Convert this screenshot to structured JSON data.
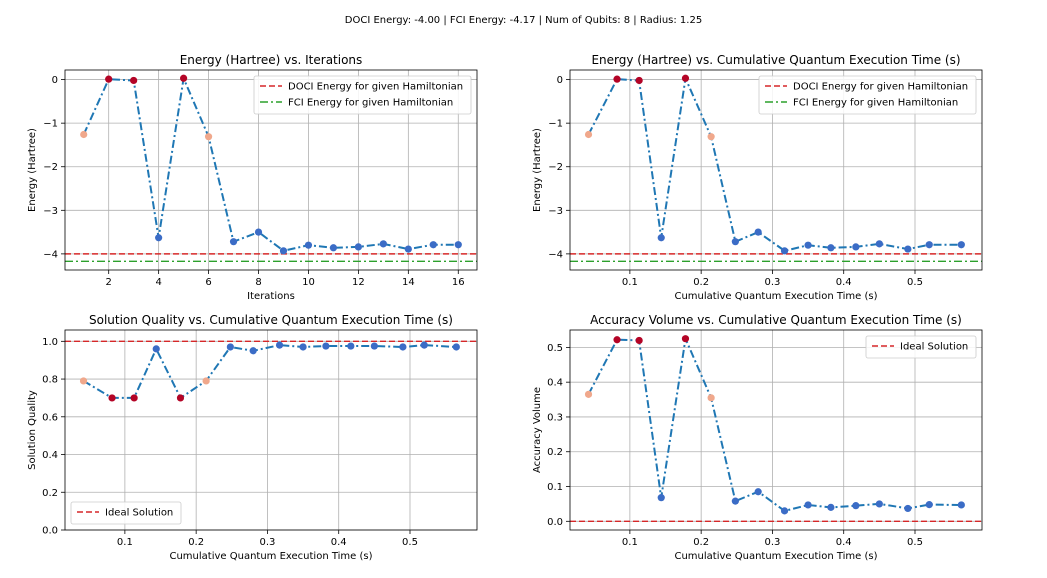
{
  "figure": {
    "suptitle": "DOCI Energy: -4.00 | FCI Energy: -4.17 | Num of Qubits: 8 | Radius: 1.25"
  },
  "chart_data": [
    {
      "type": "line",
      "title": "Energy (Hartree) vs. Iterations",
      "xlabel": "Iterations",
      "ylabel": "Energy (Hartree)",
      "xlim": [
        0.25,
        16.75
      ],
      "ylim": [
        -4.37,
        0.22
      ],
      "xticks": [
        2,
        4,
        6,
        8,
        10,
        12,
        14,
        16
      ],
      "xtick_labels": [
        "2",
        "4",
        "6",
        "8",
        "10",
        "12",
        "14",
        "16"
      ],
      "yticks": [
        -4,
        -3,
        -2,
        -1,
        0
      ],
      "ytick_labels": [
        "−4",
        "−3",
        "−2",
        "−1",
        "0"
      ],
      "grid": true,
      "legend_position": "top-right",
      "x": [
        1,
        2,
        3,
        4,
        5,
        6,
        7,
        8,
        9,
        10,
        11,
        12,
        13,
        14,
        15,
        16
      ],
      "y": [
        -1.26,
        0.01,
        -0.02,
        -3.63,
        0.03,
        -1.31,
        -3.72,
        -3.5,
        -3.93,
        -3.8,
        -3.86,
        -3.84,
        -3.77,
        -3.89,
        -3.79,
        -3.79
      ],
      "point_colors": [
        "#f0a88c",
        "#b40426",
        "#b40426",
        "#3b6cc6",
        "#b40426",
        "#f0a88c",
        "#3b6cc6",
        "#3b6cc6",
        "#3b6cc6",
        "#3b6cc6",
        "#3b6cc6",
        "#3b6cc6",
        "#3b6cc6",
        "#3b6cc6",
        "#3b6cc6",
        "#3b6cc6"
      ],
      "line_color": "#1f77b4",
      "hlines": [
        {
          "y": -4.0,
          "color": "#d62728",
          "style": "dashed",
          "label": "DOCI Energy for given Hamiltonian"
        },
        {
          "y": -4.17,
          "color": "#2ca02c",
          "style": "dashdot",
          "label": "FCI Energy for given Hamiltonian"
        }
      ]
    },
    {
      "type": "line",
      "title": "Energy (Hartree) vs. Cumulative Quantum Execution Time (s)",
      "xlabel": "Cumulative Quantum Execution Time (s)",
      "ylabel": "Energy (Hartree)",
      "xlim": [
        0.016,
        0.594
      ],
      "ylim": [
        -4.37,
        0.22
      ],
      "xticks": [
        0.1,
        0.2,
        0.3,
        0.4,
        0.5
      ],
      "xtick_labels": [
        "0.1",
        "0.2",
        "0.3",
        "0.4",
        "0.5"
      ],
      "yticks": [
        -4,
        -3,
        -2,
        -1,
        0
      ],
      "ytick_labels": [
        "−4",
        "−3",
        "−2",
        "−1",
        "0"
      ],
      "grid": true,
      "legend_position": "top-right",
      "x": [
        0.042,
        0.082,
        0.113,
        0.144,
        0.178,
        0.214,
        0.248,
        0.28,
        0.317,
        0.35,
        0.382,
        0.417,
        0.45,
        0.49,
        0.52,
        0.565
      ],
      "y": [
        -1.26,
        0.01,
        -0.02,
        -3.63,
        0.03,
        -1.31,
        -3.72,
        -3.5,
        -3.93,
        -3.8,
        -3.86,
        -3.84,
        -3.77,
        -3.89,
        -3.79,
        -3.79
      ],
      "point_colors": [
        "#f0a88c",
        "#b40426",
        "#b40426",
        "#3b6cc6",
        "#b40426",
        "#f0a88c",
        "#3b6cc6",
        "#3b6cc6",
        "#3b6cc6",
        "#3b6cc6",
        "#3b6cc6",
        "#3b6cc6",
        "#3b6cc6",
        "#3b6cc6",
        "#3b6cc6",
        "#3b6cc6"
      ],
      "line_color": "#1f77b4",
      "hlines": [
        {
          "y": -4.0,
          "color": "#d62728",
          "style": "dashed",
          "label": "DOCI Energy for given Hamiltonian"
        },
        {
          "y": -4.17,
          "color": "#2ca02c",
          "style": "dashdot",
          "label": "FCI Energy for given Hamiltonian"
        }
      ]
    },
    {
      "type": "line",
      "title": "Solution Quality vs. Cumulative Quantum Execution Time (s)",
      "xlabel": "Cumulative Quantum Execution Time (s)",
      "ylabel": "Solution Quality",
      "xlim": [
        0.016,
        0.594
      ],
      "ylim": [
        0.0,
        1.06
      ],
      "xticks": [
        0.1,
        0.2,
        0.3,
        0.4,
        0.5
      ],
      "xtick_labels": [
        "0.1",
        "0.2",
        "0.3",
        "0.4",
        "0.5"
      ],
      "yticks": [
        0.0,
        0.2,
        0.4,
        0.6,
        0.8,
        1.0
      ],
      "ytick_labels": [
        "0.0",
        "0.2",
        "0.4",
        "0.6",
        "0.8",
        "1.0"
      ],
      "grid": true,
      "legend_position": "bottom-left",
      "x": [
        0.042,
        0.082,
        0.113,
        0.144,
        0.178,
        0.214,
        0.248,
        0.28,
        0.317,
        0.35,
        0.382,
        0.417,
        0.45,
        0.49,
        0.52,
        0.565
      ],
      "y": [
        0.79,
        0.7,
        0.7,
        0.96,
        0.7,
        0.79,
        0.97,
        0.95,
        0.98,
        0.97,
        0.975,
        0.975,
        0.975,
        0.97,
        0.98,
        0.97
      ],
      "point_colors": [
        "#f0a88c",
        "#b40426",
        "#b40426",
        "#3b6cc6",
        "#b40426",
        "#f0a88c",
        "#3b6cc6",
        "#3b6cc6",
        "#3b6cc6",
        "#3b6cc6",
        "#3b6cc6",
        "#3b6cc6",
        "#3b6cc6",
        "#3b6cc6",
        "#3b6cc6",
        "#3b6cc6"
      ],
      "line_color": "#1f77b4",
      "hlines": [
        {
          "y": 1.0,
          "color": "#d62728",
          "style": "dashed",
          "label": "Ideal Solution"
        }
      ]
    },
    {
      "type": "line",
      "title": "Accuracy Volume vs. Cumulative Quantum Execution Time (s)",
      "xlabel": "Cumulative Quantum Execution Time (s)",
      "ylabel": "Accuracy Volume",
      "xlim": [
        0.016,
        0.594
      ],
      "ylim": [
        -0.025,
        0.55
      ],
      "xticks": [
        0.1,
        0.2,
        0.3,
        0.4,
        0.5
      ],
      "xtick_labels": [
        "0.1",
        "0.2",
        "0.3",
        "0.4",
        "0.5"
      ],
      "yticks": [
        0.0,
        0.1,
        0.2,
        0.3,
        0.4,
        0.5
      ],
      "ytick_labels": [
        "0.0",
        "0.1",
        "0.2",
        "0.3",
        "0.4",
        "0.5"
      ],
      "grid": true,
      "legend_position": "top-right",
      "x": [
        0.042,
        0.082,
        0.113,
        0.144,
        0.178,
        0.214,
        0.248,
        0.28,
        0.317,
        0.35,
        0.382,
        0.417,
        0.45,
        0.49,
        0.52,
        0.565
      ],
      "y": [
        0.365,
        0.522,
        0.52,
        0.068,
        0.525,
        0.355,
        0.058,
        0.085,
        0.03,
        0.047,
        0.04,
        0.045,
        0.05,
        0.037,
        0.048,
        0.047
      ],
      "point_colors": [
        "#f0a88c",
        "#b40426",
        "#b40426",
        "#3b6cc6",
        "#b40426",
        "#f0a88c",
        "#3b6cc6",
        "#3b6cc6",
        "#3b6cc6",
        "#3b6cc6",
        "#3b6cc6",
        "#3b6cc6",
        "#3b6cc6",
        "#3b6cc6",
        "#3b6cc6",
        "#3b6cc6"
      ],
      "line_color": "#1f77b4",
      "hlines": [
        {
          "y": 0.0,
          "color": "#d62728",
          "style": "dashed",
          "label": "Ideal Solution"
        }
      ]
    }
  ]
}
